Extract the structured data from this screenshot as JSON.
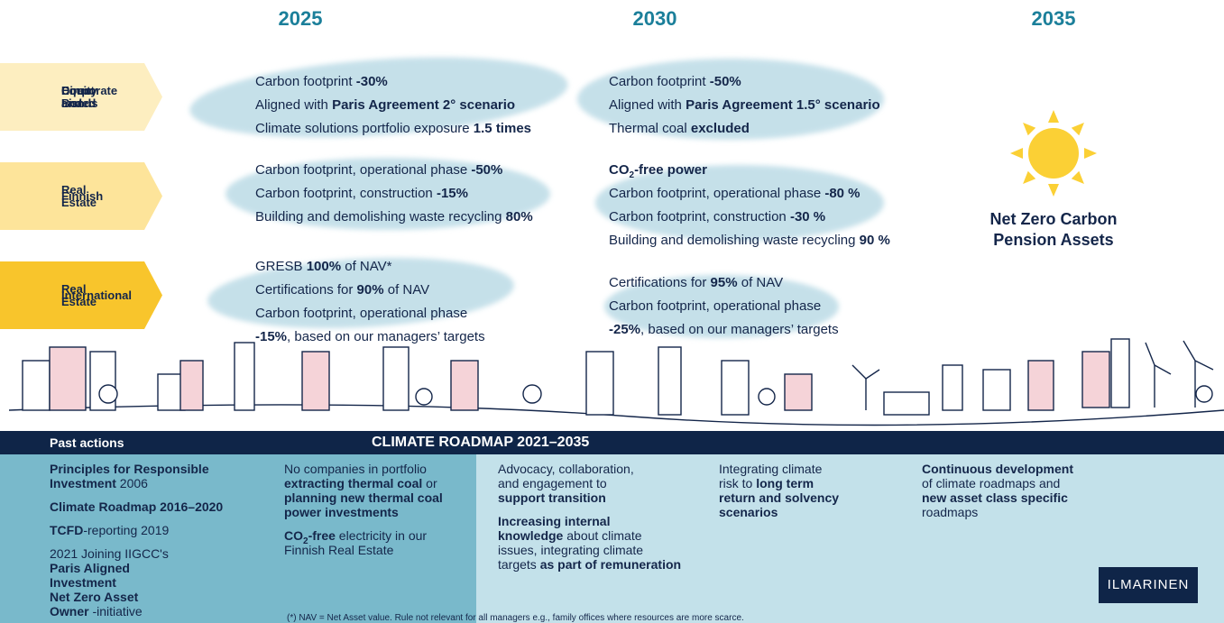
{
  "years": [
    "2025",
    "2030",
    "2035"
  ],
  "rows": [
    {
      "label": [
        "Direct Listed",
        "Equity and",
        "Corporate Bonds"
      ],
      "cells": [
        [
          [
            {
              "text": "Carbon footprint "
            },
            {
              "text": "-30%",
              "bold": true
            }
          ],
          [
            {
              "text": "Aligned with "
            },
            {
              "text": "Paris Agreement 2° scenario",
              "bold": true
            }
          ],
          [
            {
              "text": "Climate solutions portfolio exposure "
            },
            {
              "text": "1.5 times",
              "bold": true
            }
          ]
        ],
        [
          [
            {
              "text": "Carbon footprint "
            },
            {
              "text": "-50%",
              "bold": true
            }
          ],
          [
            {
              "text": "Aligned with "
            },
            {
              "text": "Paris Agreement 1.5° scenario",
              "bold": true
            }
          ],
          [
            {
              "text": "Thermal coal "
            },
            {
              "text": "excluded",
              "bold": true
            }
          ]
        ]
      ]
    },
    {
      "label": [
        "Finnish",
        "Real Estate"
      ],
      "cells": [
        [
          [
            {
              "text": "Carbon footprint, operational phase "
            },
            {
              "text": "-50%",
              "bold": true
            }
          ],
          [
            {
              "text": "Carbon footprint, construction "
            },
            {
              "text": "-15%",
              "bold": true
            }
          ],
          [
            {
              "text": "Building and demolishing waste recycling "
            },
            {
              "text": "80%",
              "bold": true
            }
          ]
        ],
        [
          [
            {
              "text": "CO",
              "bold": true
            },
            {
              "text": "2",
              "bold": true,
              "sub": true
            },
            {
              "text": "-free power",
              "bold": true
            }
          ],
          [
            {
              "text": "Carbon footprint, operational phase "
            },
            {
              "text": "-80 %",
              "bold": true
            }
          ],
          [
            {
              "text": "Carbon footprint, construction "
            },
            {
              "text": "-30 %",
              "bold": true
            }
          ],
          [
            {
              "text": "Building and demolishing waste recycling "
            },
            {
              "text": "90 %",
              "bold": true
            }
          ]
        ]
      ]
    },
    {
      "label": [
        "International",
        "Real Estate"
      ],
      "cells": [
        [
          [
            {
              "text": "GRESB  "
            },
            {
              "text": "100%",
              "bold": true
            },
            {
              "text": " of NAV*"
            }
          ],
          [
            {
              "text": "Certifications for "
            },
            {
              "text": "90%",
              "bold": true
            },
            {
              "text": " of NAV"
            }
          ],
          [
            {
              "text": "Carbon footprint, operational phase"
            }
          ],
          [
            {
              "text": "-15%",
              "bold": true
            },
            {
              "text": ", based on our managers’ targets"
            }
          ]
        ],
        [
          [
            {
              "text": "Certifications for "
            },
            {
              "text": "95%",
              "bold": true
            },
            {
              "text": " of NAV"
            }
          ],
          [
            {
              "text": "Carbon footprint, operational phase"
            }
          ],
          [
            {
              "text": "-25%",
              "bold": true
            },
            {
              "text": ", based on our managers’ targets"
            }
          ]
        ]
      ]
    }
  ],
  "goal": [
    "Net Zero Carbon",
    "Pension Assets"
  ],
  "bottom": {
    "past_title": "Past actions",
    "roadmap_title": "CLIMATE ROADMAP 2021–2035",
    "columns": [
      [
        [
          [
            {
              "text": "Principles for Responsible",
              "bold": true
            }
          ],
          [
            {
              "text": "Investment",
              "bold": true
            },
            {
              "text": " 2006"
            }
          ]
        ],
        [
          [
            {
              "text": "Climate Roadmap 2016–2020",
              "bold": true
            }
          ]
        ],
        [
          [
            {
              "text": "TCFD",
              "bold": true
            },
            {
              "text": "-reporting 2019"
            }
          ]
        ],
        [
          [
            {
              "text": "2021 Joining IIGCC's"
            }
          ],
          [
            {
              "text": "Paris Aligned",
              "bold": true
            }
          ],
          [
            {
              "text": "Investment",
              "bold": true
            }
          ],
          [
            {
              "text": "Net Zero Asset",
              "bold": true
            }
          ],
          [
            {
              "text": "Owner",
              "bold": true
            },
            {
              "text": " -initiative"
            }
          ]
        ]
      ],
      [
        [
          [
            {
              "text": "No companies in portfolio"
            }
          ],
          [
            {
              "text": "extracting thermal coal",
              "bold": true
            },
            {
              "text": " or"
            }
          ],
          [
            {
              "text": "planning new thermal coal",
              "bold": true
            }
          ],
          [
            {
              "text": "power investments",
              "bold": true
            }
          ]
        ],
        [
          [
            {
              "text": "CO",
              "bold": true
            },
            {
              "text": "2",
              "bold": true,
              "sub": true
            },
            {
              "text": "-free",
              "bold": true
            },
            {
              "text": " electricity in our"
            }
          ],
          [
            {
              "text": "Finnish Real Estate"
            }
          ]
        ]
      ],
      [
        [
          [
            {
              "text": "Advocacy, collaboration,"
            }
          ],
          [
            {
              "text": "and engagement to"
            }
          ],
          [
            {
              "text": "support transition",
              "bold": true
            }
          ]
        ],
        [
          [
            {
              "text": "Increasing internal",
              "bold": true
            }
          ],
          [
            {
              "text": "knowledge",
              "bold": true
            },
            {
              "text": " about climate"
            }
          ],
          [
            {
              "text": "issues, integrating climate"
            }
          ],
          [
            {
              "text": "targets "
            },
            {
              "text": "as part of remuneration",
              "bold": true
            }
          ]
        ]
      ],
      [
        [
          [
            {
              "text": "Integrating climate"
            }
          ],
          [
            {
              "text": "risk to "
            },
            {
              "text": "long term",
              "bold": true
            }
          ],
          [
            {
              "text": "return and solvency",
              "bold": true
            }
          ],
          [
            {
              "text": "scenarios",
              "bold": true
            }
          ]
        ]
      ],
      [
        [
          [
            {
              "text": "Continuous development",
              "bold": true
            }
          ],
          [
            {
              "text": "of climate roadmaps and"
            }
          ],
          [
            {
              "text": "new asset class specific",
              "bold": true
            }
          ],
          [
            {
              "text": "roadmaps"
            }
          ]
        ]
      ]
    ]
  },
  "footnote": "(*) NAV = Net Asset value. Rule not relevant for all managers e.g., family offices where resources are more scarce.",
  "logo": "ILMARINEN"
}
